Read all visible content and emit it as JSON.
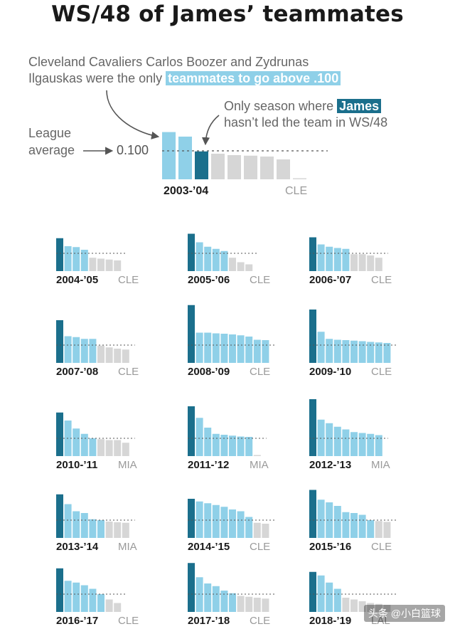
{
  "title": "WS/48 of James’ teammates",
  "annotations": {
    "boozer_line1": "Cleveland Cavaliers Carlos Boozer and Zydrunas",
    "boozer_line2_prefix": "Ilgauskas were the only ",
    "boozer_highlight": "teammates to go above .100",
    "only_season_prefix": "Only season where ",
    "only_season_highlight": "James",
    "only_season_line2": "hasn’t led the team in WS/48",
    "league_line1": "League",
    "league_line2": "average",
    "league_value": "0.100"
  },
  "colors": {
    "james": "#1b6f8c",
    "above_average": "#8fd0e8",
    "below_average": "#d6d6d6",
    "reference_line": "#555555",
    "text_dark": "#1a1a1a",
    "text_team": "#9a9a9a"
  },
  "chart_data": [
    {
      "type": "bar",
      "season": "2003-’04",
      "team": "CLE",
      "reference": 0.1,
      "james_index": 2,
      "values": [
        0.166,
        0.15,
        0.098,
        0.09,
        0.085,
        0.083,
        0.08,
        0.07,
        0.002
      ]
    },
    {
      "type": "bar",
      "season": "2004-’05",
      "team": "CLE",
      "reference": 0.1,
      "james_index": 0,
      "values": [
        0.185,
        0.14,
        0.135,
        0.12,
        0.075,
        0.07,
        0.065,
        0.06
      ]
    },
    {
      "type": "bar",
      "season": "2005-’06",
      "team": "CLE",
      "reference": 0.1,
      "james_index": 0,
      "values": [
        0.21,
        0.162,
        0.137,
        0.125,
        0.113,
        0.075,
        0.05,
        0.038
      ]
    },
    {
      "type": "bar",
      "season": "2006-’07",
      "team": "CLE",
      "reference": 0.1,
      "james_index": 0,
      "values": [
        0.19,
        0.15,
        0.137,
        0.13,
        0.125,
        0.095,
        0.095,
        0.088,
        0.075
      ]
    },
    {
      "type": "bar",
      "season": "2007-’08",
      "team": "CLE",
      "reference": 0.1,
      "james_index": 0,
      "values": [
        0.24,
        0.15,
        0.145,
        0.135,
        0.135,
        0.097,
        0.087,
        0.08,
        0.075
      ]
    },
    {
      "type": "bar",
      "season": "2008-’09",
      "team": "CLE",
      "reference": 0.1,
      "james_index": 0,
      "values": [
        0.325,
        0.17,
        0.17,
        0.166,
        0.164,
        0.16,
        0.155,
        0.148,
        0.13,
        0.128
      ]
    },
    {
      "type": "bar",
      "season": "2009-’10",
      "team": "CLE",
      "reference": 0.1,
      "james_index": 0,
      "values": [
        0.3,
        0.175,
        0.135,
        0.13,
        0.128,
        0.125,
        0.122,
        0.118,
        0.115,
        0.112
      ]
    },
    {
      "type": "bar",
      "season": "2010-’11",
      "team": "MIA",
      "reference": 0.1,
      "james_index": 0,
      "values": [
        0.245,
        0.2,
        0.155,
        0.125,
        0.1,
        0.095,
        0.09,
        0.09,
        0.075
      ]
    },
    {
      "type": "bar",
      "season": "2011-’12",
      "team": "MIA",
      "reference": 0.1,
      "james_index": 0,
      "values": [
        0.28,
        0.215,
        0.16,
        0.125,
        0.12,
        0.115,
        0.11,
        0.108,
        0.005
      ]
    },
    {
      "type": "bar",
      "season": "2012-’13",
      "team": "MIA",
      "reference": 0.1,
      "james_index": 0,
      "values": [
        0.32,
        0.205,
        0.185,
        0.165,
        0.15,
        0.135,
        0.13,
        0.125,
        0.118
      ]
    },
    {
      "type": "bar",
      "season": "2013-’14",
      "team": "MIA",
      "reference": 0.1,
      "james_index": 0,
      "values": [
        0.245,
        0.19,
        0.15,
        0.14,
        0.105,
        0.1,
        0.092,
        0.088,
        0.085
      ]
    },
    {
      "type": "bar",
      "season": "2014-’15",
      "team": "CLE",
      "reference": 0.1,
      "james_index": 0,
      "values": [
        0.22,
        0.205,
        0.195,
        0.185,
        0.175,
        0.16,
        0.15,
        0.118,
        0.085,
        0.08
      ]
    },
    {
      "type": "bar",
      "season": "2015-’16",
      "team": "CLE",
      "reference": 0.1,
      "james_index": 0,
      "values": [
        0.27,
        0.215,
        0.2,
        0.18,
        0.145,
        0.14,
        0.13,
        0.1,
        0.095,
        0.09
      ]
    },
    {
      "type": "bar",
      "season": "2016-’17",
      "team": "CLE",
      "reference": 0.1,
      "james_index": 0,
      "values": [
        0.245,
        0.175,
        0.165,
        0.15,
        0.13,
        0.1,
        0.07,
        0.05
      ]
    },
    {
      "type": "bar",
      "season": "2017-’18",
      "team": "CLE",
      "reference": 0.1,
      "james_index": 0,
      "values": [
        0.275,
        0.195,
        0.16,
        0.145,
        0.12,
        0.105,
        0.09,
        0.085,
        0.08,
        0.075
      ]
    },
    {
      "type": "bar",
      "season": "2018-’19",
      "team": "LAL",
      "reference": 0.1,
      "james_index": 0,
      "values": [
        0.225,
        0.205,
        0.165,
        0.13,
        0.08,
        0.07,
        0.06,
        0.05,
        0.045,
        0.04
      ]
    }
  ],
  "watermark": "头条 @小白篮球"
}
